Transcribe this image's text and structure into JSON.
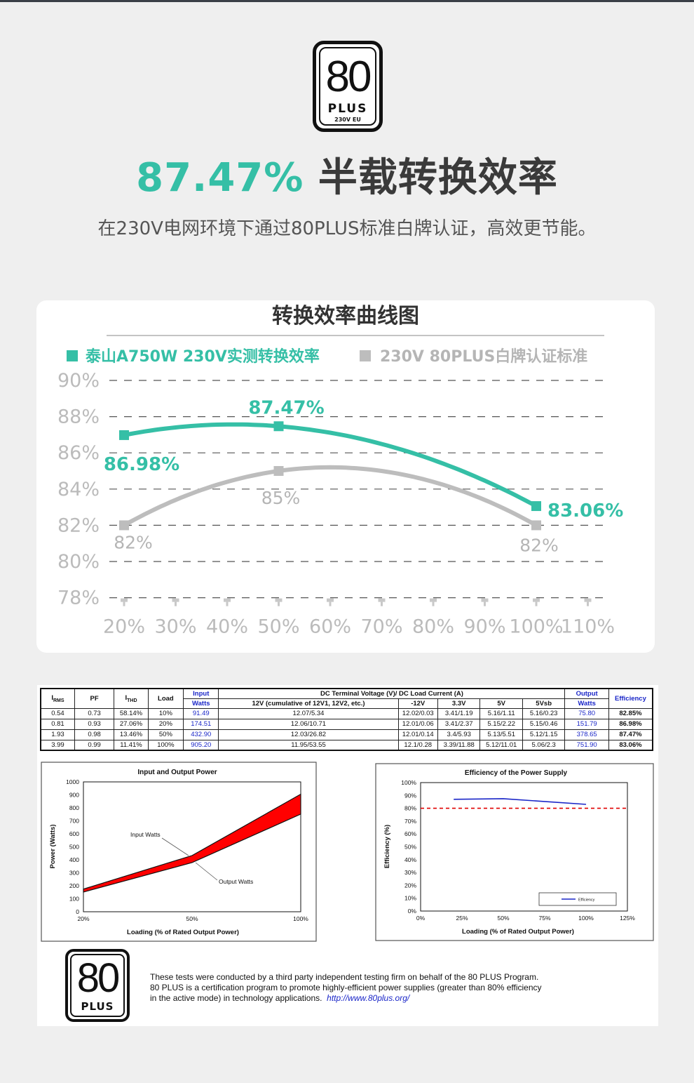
{
  "logo": {
    "number": "80",
    "brand": "PLUS",
    "tag": "230V EU"
  },
  "headline": {
    "percent": "87.47%",
    "text": " 半载转换效率"
  },
  "subline": "在230V电网环境下通过80PLUS标准白牌认证，高效更节能。",
  "colors": {
    "accent": "#35bfa6",
    "standard": "#bdbdbd",
    "axis": "#c8c8c8",
    "axis_text": "#bbbbbb"
  },
  "chart_data": [
    {
      "type": "line",
      "title": "转换效率曲线图",
      "x_ticks": [
        "20%",
        "30%",
        "40%",
        "50%",
        "60%",
        "70%",
        "80%",
        "90%",
        "100%",
        "110%"
      ],
      "y_ticks": [
        "90%",
        "88%",
        "86%",
        "84%",
        "82%",
        "80%",
        "78%"
      ],
      "ylim": [
        78,
        90
      ],
      "xlim": [
        20,
        110
      ],
      "grid": true,
      "legend": "top",
      "series": [
        {
          "name": "泰山A750W 230V实测转换效率",
          "color": "#35bfa6",
          "x": [
            20,
            50,
            100
          ],
          "y": [
            86.98,
            87.47,
            83.06
          ],
          "labels": [
            "86.98%",
            "87.47%",
            "83.06%"
          ]
        },
        {
          "name": "230V 80PLUS白牌认证标准",
          "color": "#bdbdbd",
          "x": [
            20,
            50,
            100
          ],
          "y": [
            82,
            85,
            82
          ],
          "labels": [
            "82%",
            "85%",
            "82%"
          ]
        }
      ]
    },
    {
      "type": "table",
      "headers": {
        "irms": "I",
        "irms_sub": "RMS",
        "pf": "PF",
        "ithd": "I",
        "ithd_sub": "THD",
        "load": "Load",
        "input": "Input",
        "watts": "Watts",
        "dc_group": "DC Terminal Voltage (V)/ DC Load Current (A)",
        "v12": "12V (cumulative of 12V1, 12V2, etc.)",
        "vm12": "-12V",
        "v33": "3.3V",
        "v5": "5V",
        "v5sb": "5Vsb",
        "output": "Output",
        "output_watts": "Watts",
        "efficiency": "Efficiency"
      },
      "rows": [
        [
          "0.54",
          "0.73",
          "58.14%",
          "10%",
          "91.49",
          "12.07/5.34",
          "12.02/0.03",
          "3.41/1.19",
          "5.16/1.11",
          "5.16/0.23",
          "75.80",
          "82.85%"
        ],
        [
          "0.81",
          "0.93",
          "27.06%",
          "20%",
          "174.51",
          "12.06/10.71",
          "12.01/0.06",
          "3.41/2.37",
          "5.15/2.22",
          "5.15/0.46",
          "151.79",
          "86.98%"
        ],
        [
          "1.93",
          "0.98",
          "13.46%",
          "50%",
          "432.90",
          "12.03/26.82",
          "12.01/0.14",
          "3.4/5.93",
          "5.13/5.51",
          "5.12/1.15",
          "378.65",
          "87.47%"
        ],
        [
          "3.99",
          "0.99",
          "11.41%",
          "100%",
          "905.20",
          "11.95/53.55",
          "12.1/0.28",
          "3.39/11.88",
          "5.12/11.01",
          "5.06/2.3",
          "751.90",
          "83.06%"
        ]
      ]
    },
    {
      "type": "area",
      "title": "Input and Output Power",
      "xlabel": "Loading (% of Rated Output Power)",
      "ylabel": "Power (Watts)",
      "x_ticks": [
        "20%",
        "50%",
        "100%"
      ],
      "y_ticks": [
        "1000",
        "900",
        "800",
        "700",
        "600",
        "500",
        "400",
        "300",
        "200",
        "100",
        "0"
      ],
      "ylim": [
        0,
        1000
      ],
      "series": [
        {
          "name": "Input Watts",
          "x": [
            20,
            50,
            100
          ],
          "y": [
            174.51,
            432.9,
            905.2
          ]
        },
        {
          "name": "Output Watts",
          "x": [
            20,
            50,
            100
          ],
          "y": [
            151.79,
            378.65,
            751.9
          ]
        }
      ]
    },
    {
      "type": "line",
      "title": "Efficiency of the Power Supply",
      "xlabel": "Loading (% of Rated Output Power)",
      "ylabel": "Efficiency (%)",
      "x_ticks": [
        "0%",
        "25%",
        "50%",
        "75%",
        "100%",
        "125%"
      ],
      "y_ticks": [
        "100%",
        "90%",
        "80%",
        "70%",
        "60%",
        "50%",
        "40%",
        "30%",
        "20%",
        "10%",
        "0%"
      ],
      "xlim": [
        0,
        125
      ],
      "ylim": [
        0,
        100
      ],
      "threshold": 80,
      "legend": "bottom-right",
      "series": [
        {
          "name": "Efficiency",
          "x": [
            20,
            50,
            100
          ],
          "y": [
            86.98,
            87.47,
            83.06
          ]
        }
      ]
    }
  ],
  "footer": {
    "logo_number": "80",
    "logo_brand": "PLUS",
    "line1": "These tests were conducted by a third party independent testing firm on behalf of the 80 PLUS Program.",
    "line2": "80 PLUS is a certification program to promote highly-efficient power supplies (greater than 80% efficiency",
    "line3": "in the active mode) in technology applications.",
    "url": "http://www.80plus.org/"
  }
}
